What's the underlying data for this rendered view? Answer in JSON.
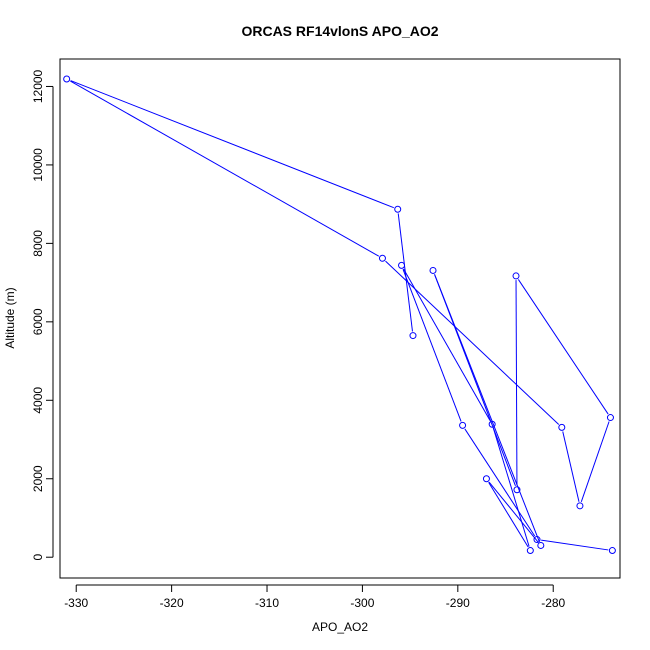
{
  "chart_data": {
    "type": "line",
    "title": "ORCAS RF14vlonS APO_AO2",
    "xlabel": "APO_AO2",
    "ylabel": "Altitude (m)",
    "xlim": [
      -331.7,
      -273.0
    ],
    "ylim": [
      -530,
      12700
    ],
    "xticks": [
      -330,
      -320,
      -310,
      -300,
      -290,
      -280
    ],
    "yticks": [
      0,
      2000,
      4000,
      6000,
      8000,
      10000,
      12000
    ],
    "grid": false,
    "series": [
      {
        "color": "#0000ff",
        "marker": "open-circle",
        "points": [
          {
            "x": -294.7,
            "y": 5650
          },
          {
            "x": -296.3,
            "y": 8870
          },
          {
            "x": -331.0,
            "y": 12190
          },
          {
            "x": -297.9,
            "y": 7620
          },
          {
            "x": -279.1,
            "y": 3310
          },
          {
            "x": -277.2,
            "y": 1310
          },
          {
            "x": -274.0,
            "y": 3560
          },
          {
            "x": -283.9,
            "y": 7170
          },
          {
            "x": -283.8,
            "y": 1720
          },
          {
            "x": -292.6,
            "y": 7310
          },
          {
            "x": -281.3,
            "y": 300
          },
          {
            "x": -287.0,
            "y": 2000
          },
          {
            "x": -282.4,
            "y": 170
          },
          {
            "x": -286.4,
            "y": 3390
          },
          {
            "x": -295.9,
            "y": 7440
          },
          {
            "x": -289.5,
            "y": 3360
          },
          {
            "x": -281.7,
            "y": 450
          },
          {
            "x": -273.8,
            "y": 170
          }
        ]
      }
    ]
  }
}
